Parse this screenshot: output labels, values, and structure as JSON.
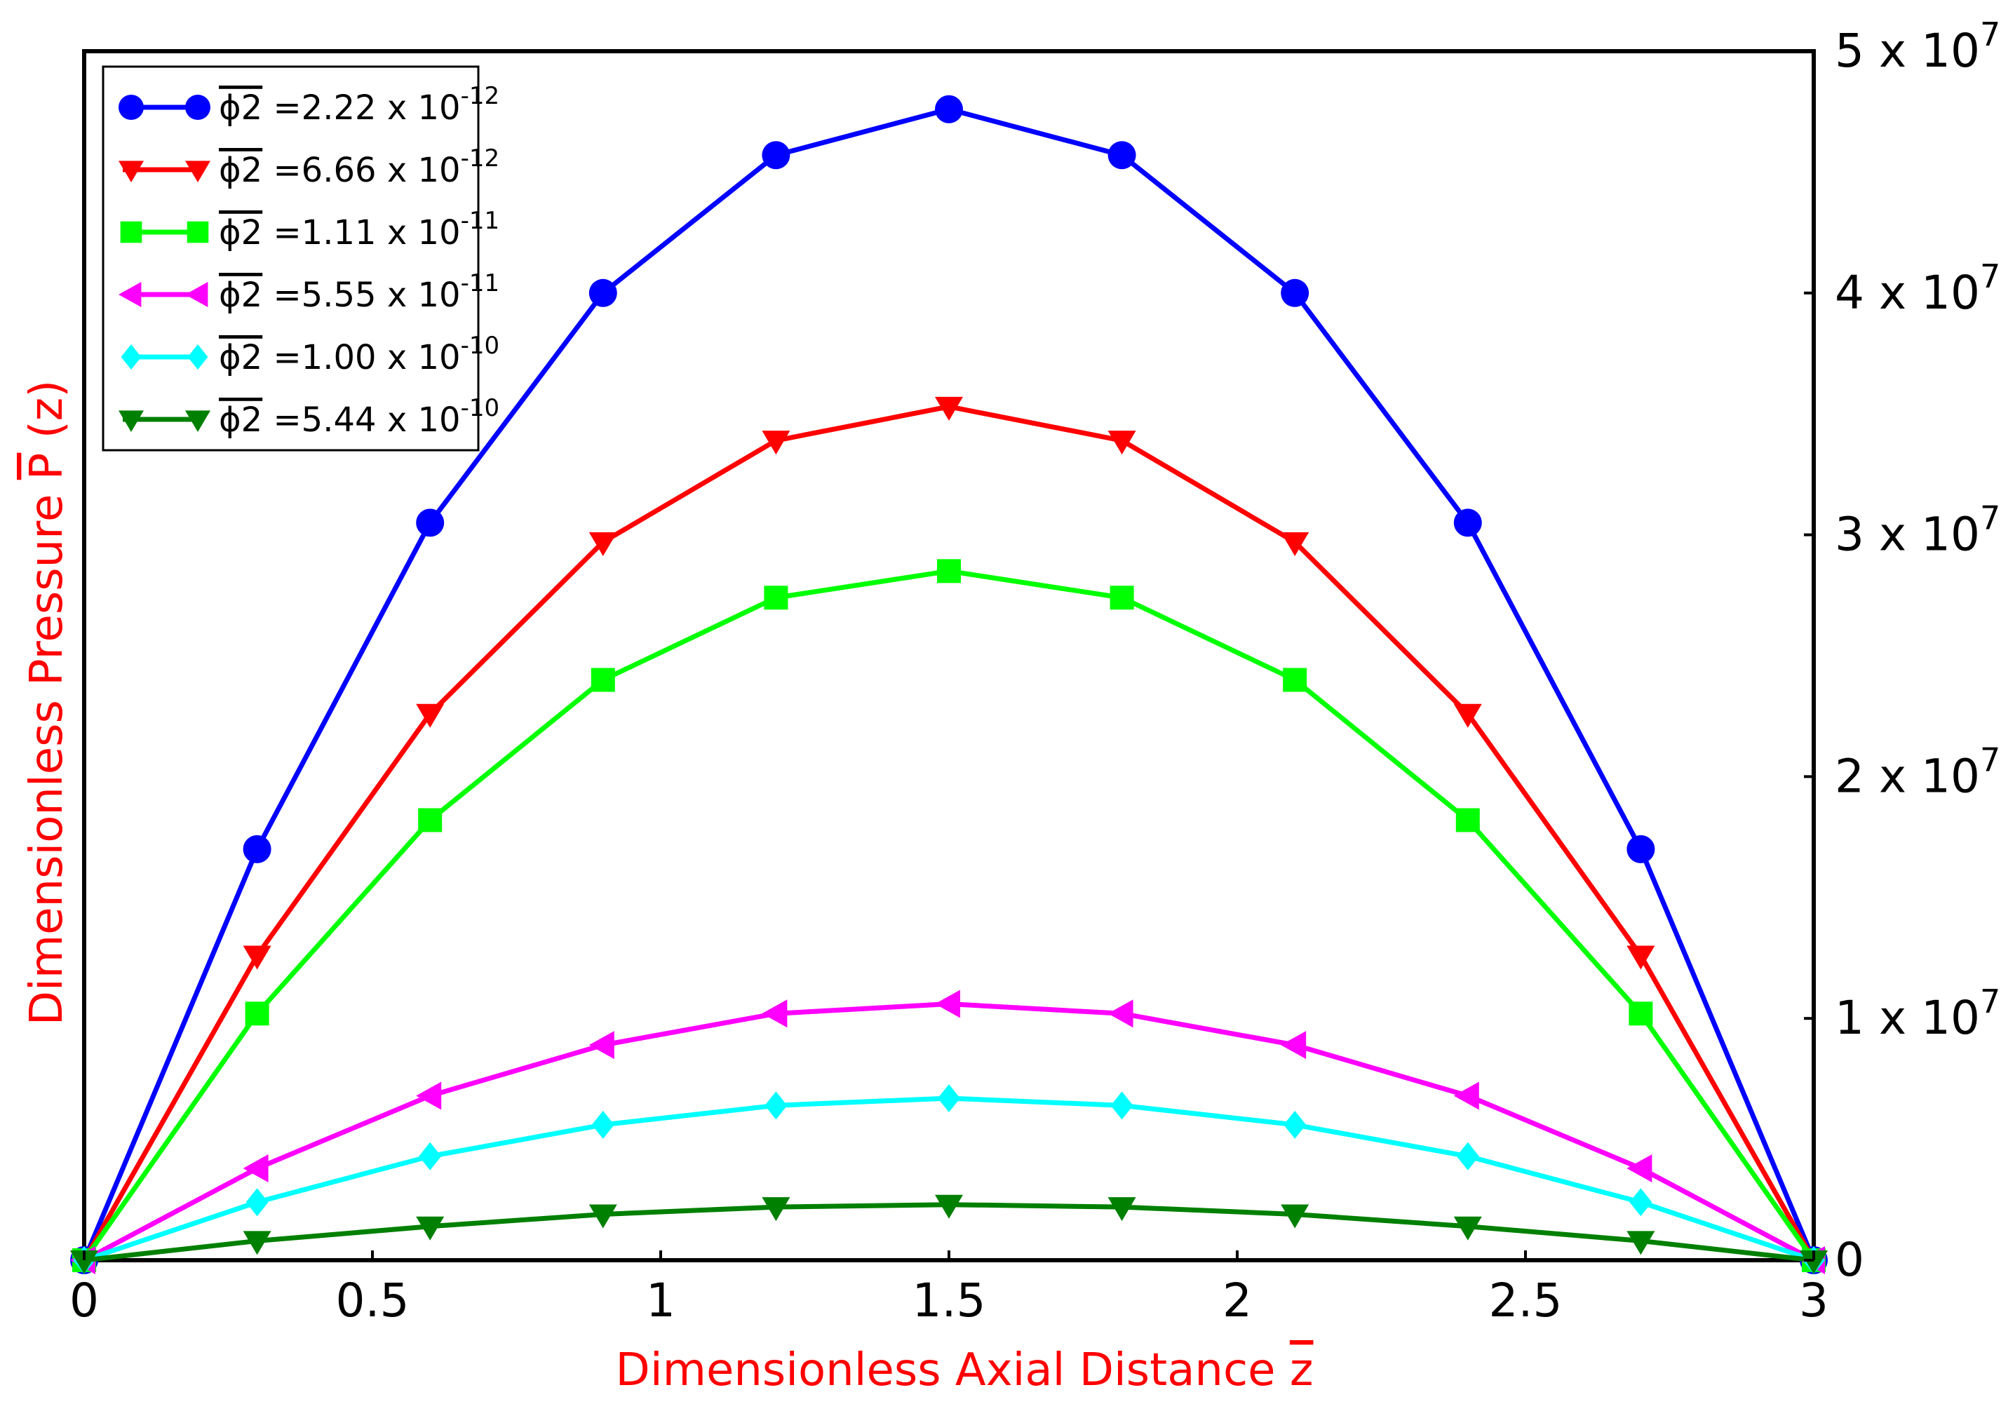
{
  "chart_data": {
    "type": "line",
    "xlabel": "Dimensionless Axial Distance",
    "xlabel_symbol": "z",
    "ylabel": "Dimensionless  Pressure",
    "ylabel_symbol": "P",
    "ylabel_arg": "(z)",
    "axis_title_color": "#ff0000",
    "xlim": [
      0,
      3
    ],
    "ylim": [
      0,
      50000000
    ],
    "x_ticks": [
      {
        "value": 0,
        "label": "0"
      },
      {
        "value": 0.5,
        "label": "0.5"
      },
      {
        "value": 1,
        "label": "1"
      },
      {
        "value": 1.5,
        "label": "1.5"
      },
      {
        "value": 2,
        "label": "2"
      },
      {
        "value": 2.5,
        "label": "2.5"
      },
      {
        "value": 3,
        "label": "3"
      }
    ],
    "y_ticks": [
      {
        "value": 0,
        "mantissa": "0",
        "exp": ""
      },
      {
        "value": 10000000,
        "mantissa": "1 x 10",
        "exp": "7"
      },
      {
        "value": 20000000,
        "mantissa": "2 x 10",
        "exp": "7"
      },
      {
        "value": 30000000,
        "mantissa": "3 x 10",
        "exp": "7"
      },
      {
        "value": 40000000,
        "mantissa": "4 x 10",
        "exp": "7"
      },
      {
        "value": 50000000,
        "mantissa": "5 x 10",
        "exp": "7"
      }
    ],
    "y_axis_side": "right",
    "grid": false,
    "legend_position": "top-left",
    "x": [
      0,
      0.3,
      0.6,
      0.9,
      1.2,
      1.5,
      1.8,
      2.1,
      2.4,
      2.7,
      3.0
    ],
    "series": [
      {
        "name": "ϕ2 =2.22 x 10^-12",
        "symbol": "ϕ2",
        "legend_value": "=2.22 x 10",
        "legend_exp": "-12",
        "color": "#0000ff",
        "marker": "circle",
        "values": [
          0,
          17000000,
          30500000,
          40000000,
          45700000,
          47600000,
          45700000,
          40000000,
          30500000,
          17000000,
          0
        ]
      },
      {
        "name": "ϕ2 =6.66 x 10^-12",
        "symbol": "ϕ2",
        "legend_value": "=6.66 x 10",
        "legend_exp": "-12",
        "color": "#ff0000",
        "marker": "triangle-down",
        "values": [
          0,
          12600000,
          22600000,
          29700000,
          33900000,
          35300000,
          33900000,
          29700000,
          22600000,
          12600000,
          0
        ]
      },
      {
        "name": "ϕ2 =1.11 x 10^-11",
        "symbol": "ϕ2",
        "legend_value": "=1.11 x 10",
        "legend_exp": "-11",
        "color": "#00ff00",
        "marker": "square",
        "values": [
          0,
          10200000,
          18200000,
          24000000,
          27400000,
          28500000,
          27400000,
          24000000,
          18200000,
          10200000,
          0
        ]
      },
      {
        "name": "ϕ2 =5.55 x 10^-11",
        "symbol": "ϕ2",
        "legend_value": "=5.55 x 10",
        "legend_exp": "-11",
        "color": "#ff00ff",
        "marker": "triangle-left",
        "values": [
          0,
          3800000,
          6800000,
          8900000,
          10200000,
          10600000,
          10200000,
          8900000,
          6800000,
          3800000,
          0
        ]
      },
      {
        "name": "ϕ2 =1.00 x 10^-10",
        "symbol": "ϕ2",
        "legend_value": "=1.00 x 10",
        "legend_exp": "-10",
        "color": "#00ffff",
        "marker": "diamond",
        "values": [
          0,
          2400000,
          4300000,
          5600000,
          6400000,
          6700000,
          6400000,
          5600000,
          4300000,
          2400000,
          0
        ]
      },
      {
        "name": "ϕ2 =5.44 x 10^-10",
        "symbol": "ϕ2",
        "legend_value": "=5.44 x 10",
        "legend_exp": "-10",
        "color": "#008000",
        "marker": "triangle-down",
        "values": [
          0,
          800000,
          1400000,
          1900000,
          2200000,
          2300000,
          2200000,
          1900000,
          1400000,
          800000,
          0
        ]
      }
    ]
  }
}
